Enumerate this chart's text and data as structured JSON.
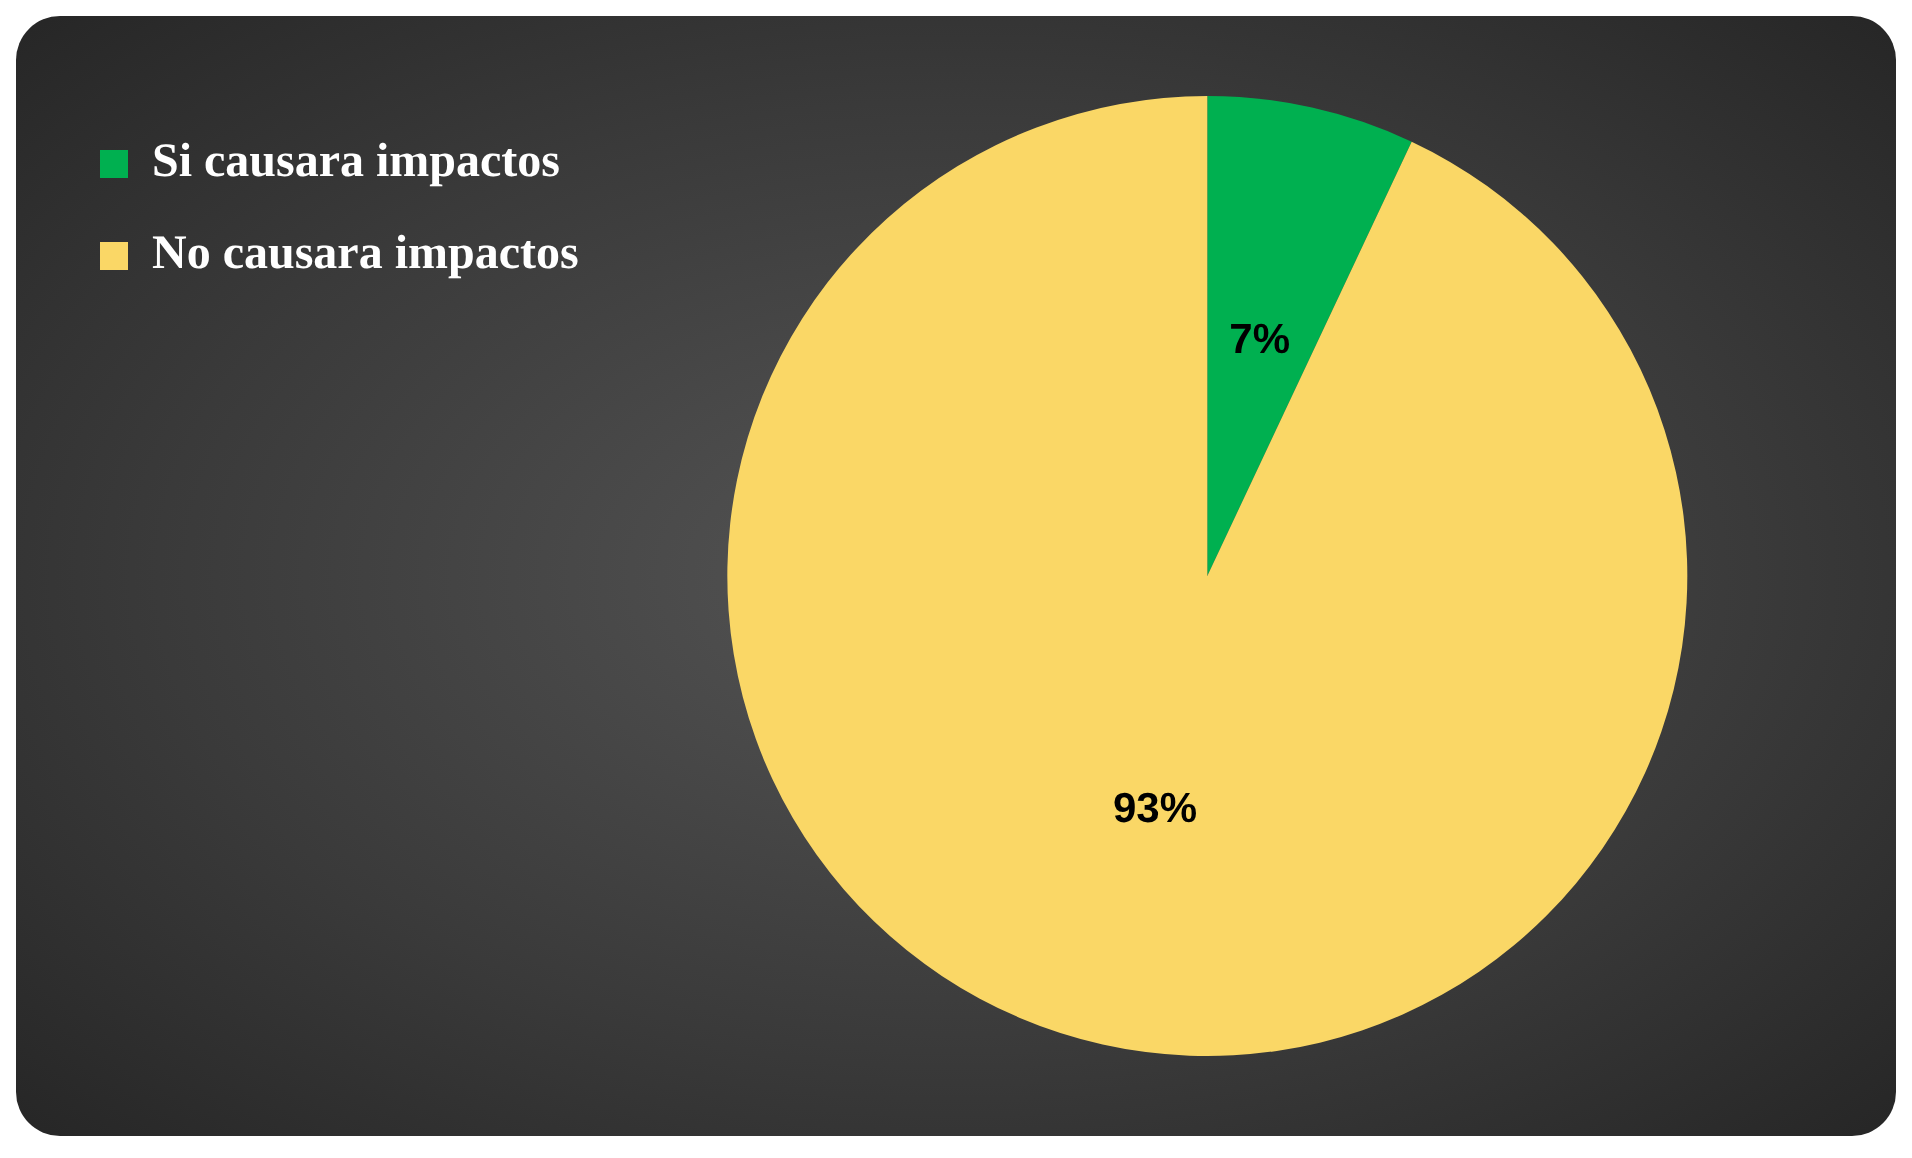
{
  "chart_data": {
    "type": "pie",
    "categories": [
      "Si causara impactos",
      "No causara impactos"
    ],
    "values": [
      7,
      93
    ],
    "colors": [
      "#00b050",
      "#fad766"
    ],
    "value_labels": [
      "7%",
      "93%"
    ],
    "legend": "left"
  }
}
